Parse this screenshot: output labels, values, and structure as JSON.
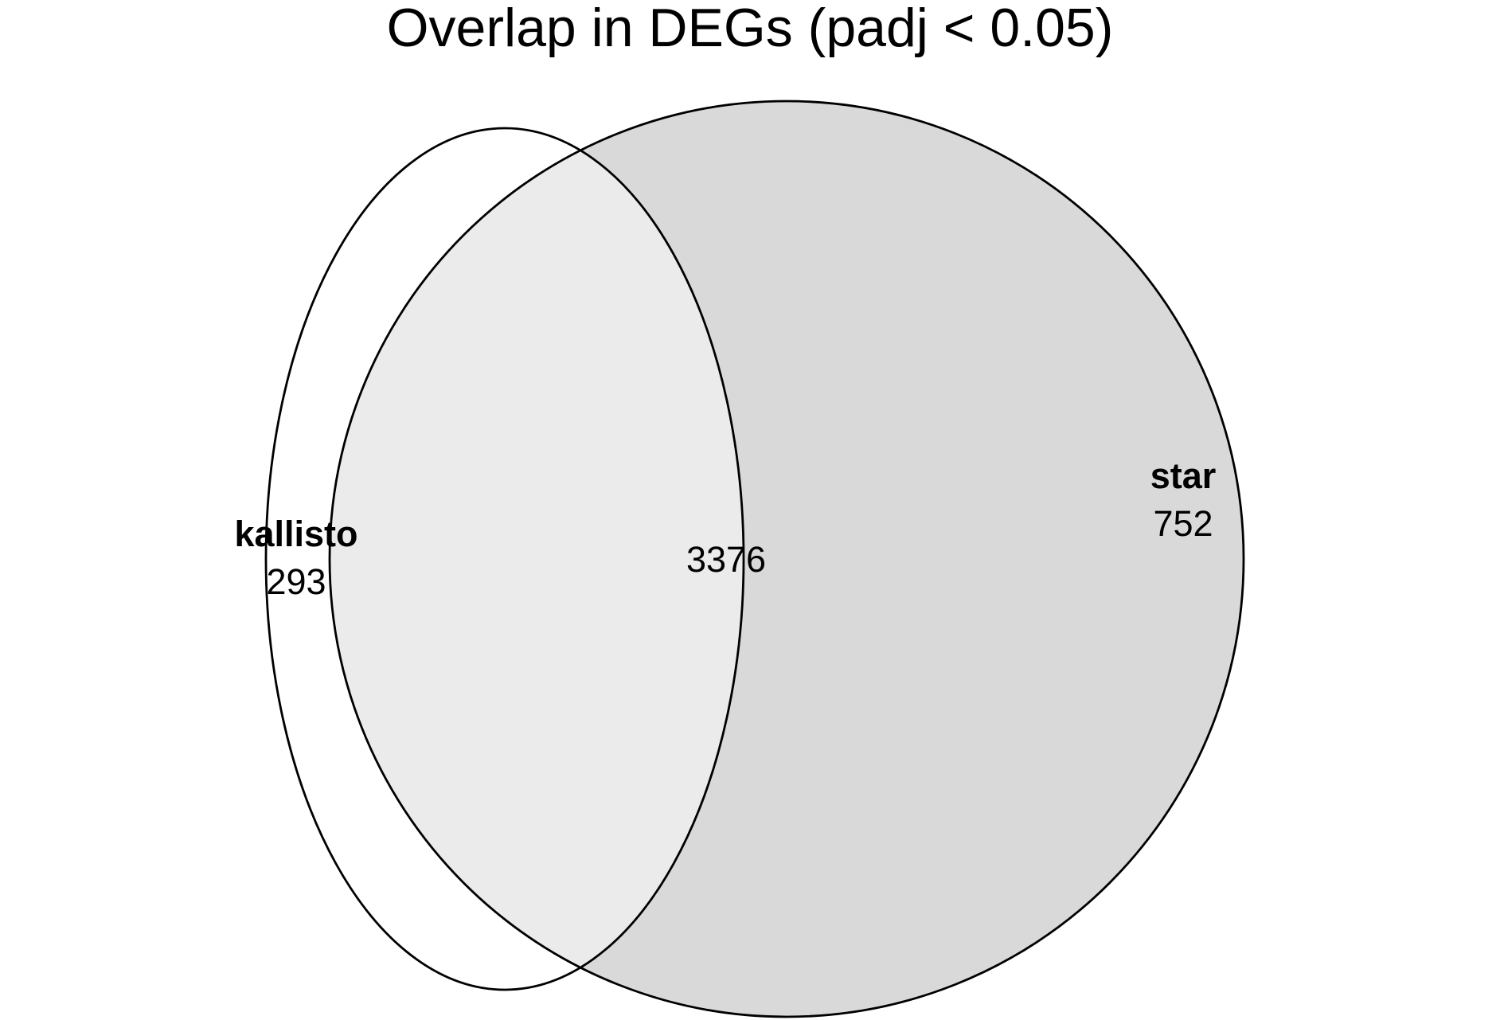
{
  "title": "Overlap in DEGs (padj < 0.05)",
  "sets": [
    {
      "name": "kallisto",
      "unique_count": "293",
      "fill": "#ffffff"
    },
    {
      "name": "star",
      "unique_count": "752",
      "fill": "#d9d9d9"
    }
  ],
  "intersection": {
    "count": "3376",
    "fill": "#ebebeb"
  },
  "outline_color": "#000000"
}
